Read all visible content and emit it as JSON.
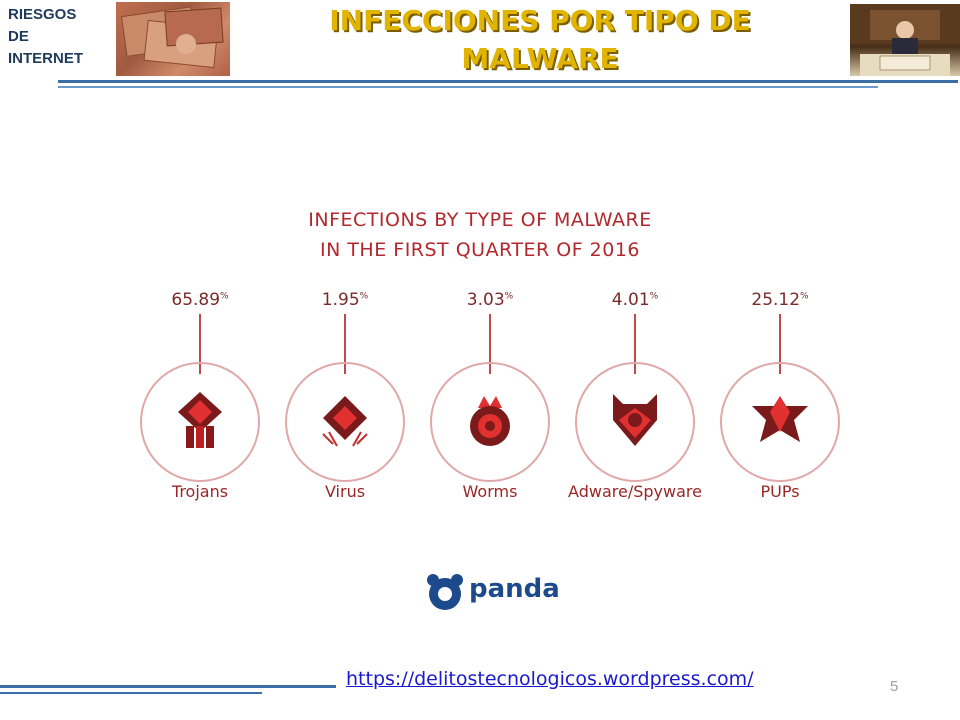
{
  "header": {
    "brand_line1": "RIESGOS",
    "brand_line2": "DE",
    "brand_line3": "INTERNET",
    "title_line1": "INFECCIONES POR TIPO DE",
    "title_line2": "MALWARE"
  },
  "infographic": {
    "title_line1": "INFECTIONS BY TYPE OF MALWARE",
    "title_line2": "IN THE FIRST QUARTER OF 2016",
    "items": [
      {
        "label": "Trojans",
        "value": "65.89",
        "unit": "%",
        "icon": "trojan-icon"
      },
      {
        "label": "Virus",
        "value": "1.95",
        "unit": "%",
        "icon": "virus-icon"
      },
      {
        "label": "Worms",
        "value": "3.03",
        "unit": "%",
        "icon": "worm-icon"
      },
      {
        "label": "Adware/Spyware",
        "value": "4.01",
        "unit": "%",
        "icon": "adware-icon"
      },
      {
        "label": "PUPs",
        "value": "25.12",
        "unit": "%",
        "icon": "pup-icon"
      }
    ],
    "logo_text": "panda"
  },
  "footer": {
    "url": "https://delitostecnologicos.wordpress.com/",
    "page_number": "5"
  },
  "colors": {
    "title": "#e1b400",
    "brand": "#1f3a5a",
    "accent_red": "#b2282c",
    "rule_blue": "#3a6ea5",
    "link": "#1a1acc"
  }
}
